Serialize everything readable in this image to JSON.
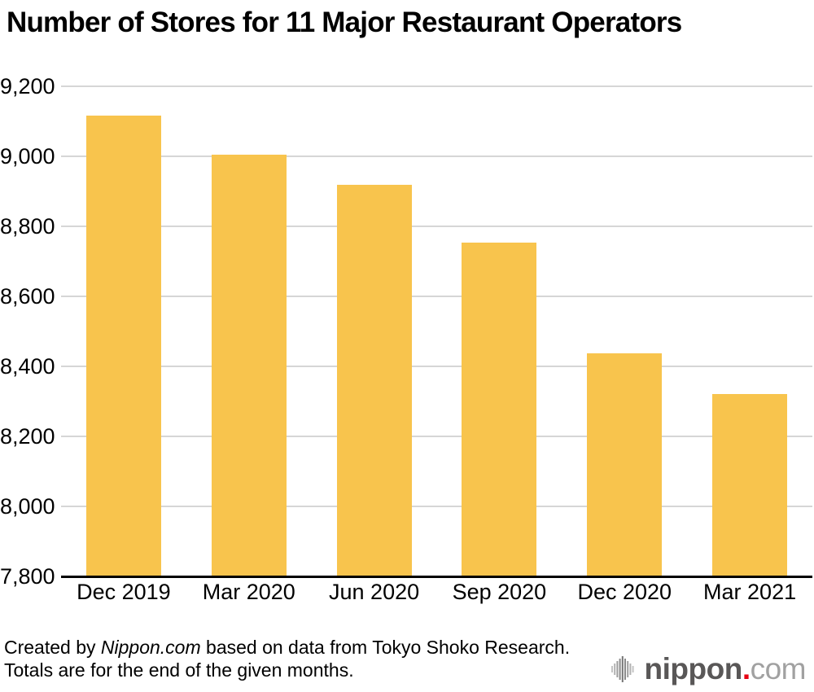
{
  "title": "Number of Stores for 11 Major Restaurant Operators",
  "chart_data": {
    "type": "bar",
    "title": "Number of Stores for 11 Major Restaurant Operators",
    "categories": [
      "Dec 2019",
      "Mar 2020",
      "Jun 2020",
      "Sep 2020",
      "Dec 2020",
      "Mar 2021"
    ],
    "values": [
      9117,
      9005,
      8918,
      8754,
      8437,
      8322
    ],
    "xlabel": "",
    "ylabel": "",
    "ylim": [
      7800,
      9200
    ],
    "ytick_step": 200,
    "yticks_top_to_bottom": [
      "9,200",
      "9,000",
      "8,800",
      "8,600",
      "8,400",
      "8,200",
      "8,000",
      "7,800"
    ],
    "grid": true,
    "legend_position": "none",
    "bar_color": "#F8C44D",
    "gridline_color": "#d6d6d6",
    "axis_color": "#000000"
  },
  "footer": {
    "credit_prefix": "Created by ",
    "credit_source": "Nippon.com",
    "credit_suffix": " based on data from Tokyo Shoko Research.",
    "note": "Totals are for the end of the given months."
  },
  "logo": {
    "icon": "audio-wave-icon",
    "brand_dark": "nippon",
    "brand_dot": ".",
    "brand_light": "com",
    "color_dark": "#595757",
    "color_dot": "#e60012",
    "color_light": "#a1a1a1"
  }
}
